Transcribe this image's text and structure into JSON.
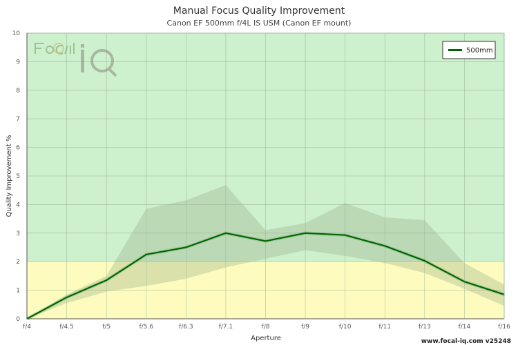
{
  "chart_data": {
    "type": "line",
    "title": "Manual Focus Quality Improvement",
    "subtitle": "Canon EF 500mm f/4L IS USM (Canon EF mount)",
    "xlabel": "Aperture",
    "ylabel": "Quality Improvement %",
    "categories": [
      "f/4",
      "f/4.5",
      "f/5",
      "f/5.6",
      "f/6.3",
      "f/7.1",
      "f/8",
      "f/9",
      "f/10",
      "f/11",
      "f/13",
      "f/14",
      "f/16"
    ],
    "y_ticks": [
      "0",
      "1",
      "2",
      "3",
      "4",
      "5",
      "6",
      "7",
      "8",
      "9",
      "10"
    ],
    "ylim": [
      0,
      10
    ],
    "grid": true,
    "zones": [
      {
        "from": 0,
        "to": 2,
        "color": "#fdfcbe"
      },
      {
        "from": 2,
        "to": 10,
        "color": "#cdf0cd"
      }
    ],
    "series": [
      {
        "name": "500mm",
        "color": "#006600",
        "values": [
          0.0,
          0.75,
          1.35,
          2.25,
          2.5,
          3.0,
          2.72,
          3.0,
          2.93,
          2.55,
          2.03,
          1.3,
          0.85
        ],
        "band_upper": [
          0.0,
          0.85,
          1.5,
          3.85,
          4.15,
          4.68,
          3.1,
          3.35,
          4.05,
          3.55,
          3.45,
          1.95,
          1.2
        ],
        "band_lower": [
          0.0,
          0.55,
          0.95,
          1.15,
          1.4,
          1.8,
          2.1,
          2.4,
          2.2,
          1.95,
          1.6,
          1.05,
          0.45
        ]
      }
    ],
    "legend": {
      "position": "top-right"
    }
  },
  "watermark": {
    "logo_text": "FoCal iQ",
    "footer": "www.focal-iq.com  v25248"
  }
}
